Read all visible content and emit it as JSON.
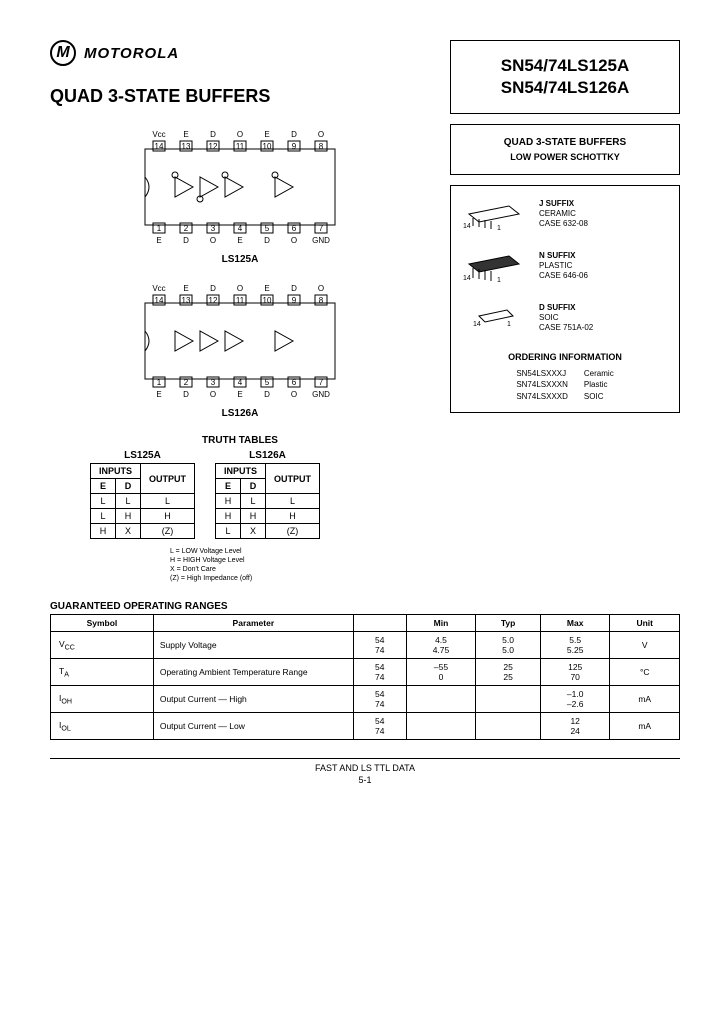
{
  "brand": "MOTOROLA",
  "title": "QUAD 3-STATE BUFFERS",
  "partNumbers": [
    "SN54/74LS125A",
    "SN54/74LS126A"
  ],
  "descBox": {
    "line1": "QUAD 3-STATE BUFFERS",
    "line2": "LOW POWER SCHOTTKY"
  },
  "chip1Label": "LS125A",
  "chip2Label": "LS126A",
  "pinTopLabels": [
    "Vcc",
    "E",
    "D",
    "O",
    "E",
    "D",
    "O"
  ],
  "pinTopNums": [
    "14",
    "13",
    "12",
    "11",
    "10",
    "9",
    "8"
  ],
  "pinBotNums": [
    "1",
    "2",
    "3",
    "4",
    "5",
    "6",
    "7"
  ],
  "pinBotLabels": [
    "E",
    "D",
    "O",
    "E",
    "D",
    "O",
    "GND"
  ],
  "packages": [
    {
      "suffix": "J SUFFIX",
      "type": "CERAMIC",
      "case": "CASE 632-08",
      "pins": "14",
      "one": "1"
    },
    {
      "suffix": "N SUFFIX",
      "type": "PLASTIC",
      "case": "CASE 646-06",
      "pins": "14",
      "one": "1"
    },
    {
      "suffix": "D SUFFIX",
      "type": "SOIC",
      "case": "CASE 751A-02",
      "pins": "14",
      "one": "1"
    }
  ],
  "orderingTitle": "ORDERING INFORMATION",
  "ordering": {
    "codes": [
      "SN54LSXXXJ",
      "SN74LSXXXN",
      "SN74LSXXXD"
    ],
    "types": [
      "Ceramic",
      "Plastic",
      "SOIC"
    ]
  },
  "truthTablesTitle": "TRUTH TABLES",
  "tt1": {
    "name": "LS125A",
    "inputsHdr": "INPUTS",
    "cols": [
      "E",
      "D",
      "OUTPUT"
    ],
    "rows": [
      [
        "L",
        "L",
        "L"
      ],
      [
        "L",
        "H",
        "H"
      ],
      [
        "H",
        "X",
        "(Z)"
      ]
    ]
  },
  "tt2": {
    "name": "LS126A",
    "inputsHdr": "INPUTS",
    "cols": [
      "E",
      "D",
      "OUTPUT"
    ],
    "rows": [
      [
        "H",
        "L",
        "L"
      ],
      [
        "H",
        "H",
        "H"
      ],
      [
        "L",
        "X",
        "(Z)"
      ]
    ]
  },
  "legend": [
    "L = LOW Voltage Level",
    "H = HIGH Voltage Level",
    "X = Don't Care",
    "(Z) = High Impedance (off)"
  ],
  "rangesTitle": "GUARANTEED OPERATING RANGES",
  "rangeCols": [
    "Symbol",
    "Parameter",
    "",
    "Min",
    "Typ",
    "Max",
    "Unit"
  ],
  "rangeRows": [
    {
      "sym": "V<sub>CC</sub>",
      "param": "Supply Voltage",
      "g": [
        "54",
        "74"
      ],
      "min": [
        "4.5",
        "4.75"
      ],
      "typ": [
        "5.0",
        "5.0"
      ],
      "max": [
        "5.5",
        "5.25"
      ],
      "unit": "V"
    },
    {
      "sym": "T<sub>A</sub>",
      "param": "Operating Ambient Temperature Range",
      "g": [
        "54",
        "74"
      ],
      "min": [
        "–55",
        "0"
      ],
      "typ": [
        "25",
        "25"
      ],
      "max": [
        "125",
        "70"
      ],
      "unit": "°C"
    },
    {
      "sym": "I<sub>OH</sub>",
      "param": "Output Current — High",
      "g": [
        "54",
        "74"
      ],
      "min": [
        "",
        ""
      ],
      "typ": [
        "",
        ""
      ],
      "max": [
        "–1.0",
        "–2.6"
      ],
      "unit": "mA"
    },
    {
      "sym": "I<sub>OL</sub>",
      "param": "Output Current — Low",
      "g": [
        "54",
        "74"
      ],
      "min": [
        "",
        ""
      ],
      "typ": [
        "",
        ""
      ],
      "max": [
        "12",
        "24"
      ],
      "unit": "mA"
    }
  ],
  "footer": "FAST AND LS TTL DATA",
  "pageNum": "5-1"
}
